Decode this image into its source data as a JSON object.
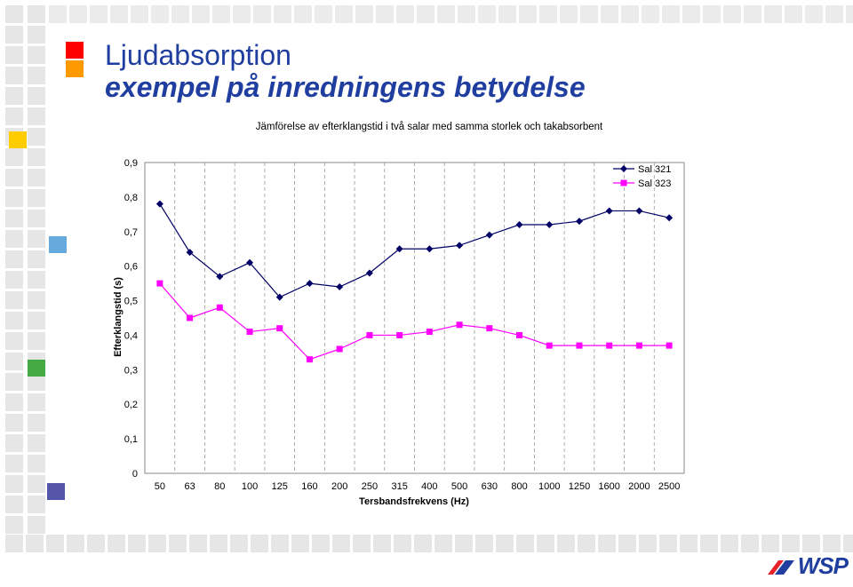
{
  "slide": {
    "title_line1": "Ljudabsorption",
    "title_line2": "exempel på inredningens betydelse",
    "logo_text": "WSP",
    "accent_colors": [
      "#ff0000",
      "#ff9900",
      "#ffcc00",
      "#66aadd",
      "#44aa44",
      "#5555aa"
    ]
  },
  "chart_data": {
    "type": "line",
    "title": "Jämförelse av efterklangstid i två salar med samma storlek och takabsorbent",
    "xlabel": "Tersbandsfrekvens (Hz)",
    "ylabel": "Efterklangstid (s)",
    "categories": [
      "50",
      "63",
      "80",
      "100",
      "125",
      "160",
      "200",
      "250",
      "315",
      "400",
      "500",
      "630",
      "800",
      "1000",
      "1250",
      "1600",
      "2000",
      "2500"
    ],
    "ylim": [
      0,
      0.9
    ],
    "yticks": [
      "0",
      "0,1",
      "0,2",
      "0,3",
      "0,4",
      "0,5",
      "0,6",
      "0,7",
      "0,8",
      "0,9"
    ],
    "grid": "vertical-dashed",
    "legend_position": "top-right",
    "series": [
      {
        "name": "Sal 321",
        "color": "#000066",
        "marker": "diamond",
        "values": [
          0.78,
          0.64,
          0.57,
          0.61,
          0.51,
          0.55,
          0.54,
          0.58,
          0.65,
          0.65,
          0.66,
          0.69,
          0.72,
          0.72,
          0.73,
          0.76,
          0.76,
          0.74
        ]
      },
      {
        "name": "Sal 323",
        "color": "#ff00ff",
        "marker": "square",
        "values": [
          0.55,
          0.45,
          0.48,
          0.41,
          0.42,
          0.33,
          0.36,
          0.4,
          0.4,
          0.41,
          0.43,
          0.42,
          0.4,
          0.37,
          0.37,
          0.37,
          0.37,
          0.37
        ]
      }
    ]
  }
}
